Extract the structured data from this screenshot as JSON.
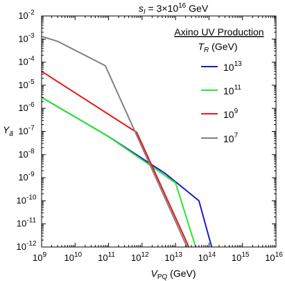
{
  "chart_data": {
    "type": "line",
    "title": {
      "var": "s",
      "sub": "I",
      "eq": " = 3×10",
      "exp": "16",
      "unit": " GeV"
    },
    "xlabel": {
      "main": "V",
      "sub": "PQ",
      "unit": " (GeV)"
    },
    "ylabel": {
      "main": "Y",
      "sub": "ã"
    },
    "x_scale": "log",
    "y_scale": "log",
    "xlim": [
      1000000000.0,
      1e+16
    ],
    "ylim": [
      1e-12,
      0.01
    ],
    "x_ticks": [
      {
        "base": "10",
        "exp": "9"
      },
      {
        "base": "10",
        "exp": "10"
      },
      {
        "base": "10",
        "exp": "11"
      },
      {
        "base": "10",
        "exp": "12"
      },
      {
        "base": "10",
        "exp": "13"
      },
      {
        "base": "10",
        "exp": "14"
      },
      {
        "base": "10",
        "exp": "15"
      },
      {
        "base": "10",
        "exp": "16"
      }
    ],
    "y_ticks": [
      {
        "base": "10",
        "exp": "-12"
      },
      {
        "base": "10",
        "exp": "-11"
      },
      {
        "base": "10",
        "exp": "-10"
      },
      {
        "base": "10",
        "exp": "-9"
      },
      {
        "base": "10",
        "exp": "-8"
      },
      {
        "base": "10",
        "exp": "-7"
      },
      {
        "base": "10",
        "exp": "-6"
      },
      {
        "base": "10",
        "exp": "-5"
      },
      {
        "base": "10",
        "exp": "-4"
      },
      {
        "base": "10",
        "exp": "-3"
      },
      {
        "base": "10",
        "exp": "-2"
      }
    ],
    "grid": false,
    "legend": {
      "title": "Axino UV Production",
      "subtitle_var": "T",
      "subtitle_sub": "R",
      "subtitle_unit": " (GeV)",
      "placement": "top-right"
    },
    "series": [
      {
        "name_base": "10",
        "name_exp": "13",
        "color": "#1a1ad6",
        "points": [
          [
            1000000000.0,
            3e-06
          ],
          [
            100000000000.0,
            6e-08
          ],
          [
            5000000000000.0,
            1.5e-09
          ],
          [
            50000000000000.0,
            1e-10
          ],
          [
            120000000000000.0,
            1e-12
          ]
        ]
      },
      {
        "name_base": "10",
        "name_exp": "11",
        "color": "#27e627",
        "points": [
          [
            1000000000.0,
            3e-06
          ],
          [
            100000000000.0,
            6e-08
          ],
          [
            3000000000000.0,
            2e-09
          ],
          [
            10000000000000.0,
            6e-10
          ],
          [
            40000000000000.0,
            1e-12
          ]
        ]
      },
      {
        "name_base": "10",
        "name_exp": "9",
        "color": "#ee1414",
        "points": [
          [
            1000000000.0,
            4e-05
          ],
          [
            700000000000.0,
            9e-08
          ],
          [
            25000000000000.0,
            1e-12
          ]
        ]
      },
      {
        "name_base": "10",
        "name_exp": "7",
        "color": "#808080",
        "points": [
          [
            1000000000.0,
            0.0013
          ],
          [
            3000000000.0,
            0.0008
          ],
          [
            80000000000.0,
            7e-05
          ],
          [
            22000000000000.0,
            1e-12
          ]
        ]
      }
    ]
  }
}
